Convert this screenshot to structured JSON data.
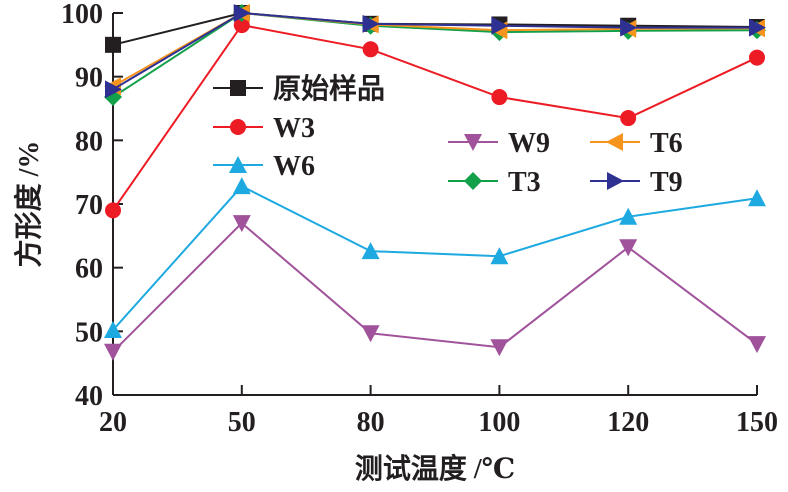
{
  "chart_data": {
    "type": "line",
    "xlabel": "测试温度 /℃",
    "ylabel": "方形度 /%",
    "categories": [
      "20",
      "50",
      "80",
      "100",
      "120",
      "150"
    ],
    "ylim": [
      40,
      100
    ],
    "yticks": [
      "40",
      "50",
      "60",
      "70",
      "80",
      "90",
      "100"
    ],
    "grid": false,
    "legend_placement": "inside-top",
    "series": [
      {
        "name": "原始样品",
        "color": "#231f20",
        "marker": "square",
        "values": [
          95,
          100,
          98.3,
          98.2,
          98,
          97.8
        ]
      },
      {
        "name": "W3",
        "color": "#ed1c24",
        "marker": "circle",
        "values": [
          69,
          98.1,
          94.3,
          86.8,
          83.5,
          93
        ]
      },
      {
        "name": "W6",
        "color": "#1eaae1",
        "marker": "triangle-up",
        "values": [
          50.2,
          72.8,
          62.6,
          61.8,
          68,
          70.9
        ]
      },
      {
        "name": "W9",
        "color": "#a0529a",
        "marker": "triangle-down",
        "values": [
          46.8,
          67,
          49.7,
          47.5,
          63.2,
          48
        ]
      },
      {
        "name": "T3",
        "color": "#13a04a",
        "marker": "diamond",
        "values": [
          86.8,
          100,
          98,
          97,
          97.2,
          97.3
        ]
      },
      {
        "name": "T6",
        "color": "#f7941d",
        "marker": "triangle-left",
        "values": [
          88.5,
          100,
          98.2,
          97.3,
          97.5,
          97.6
        ]
      },
      {
        "name": "T9",
        "color": "#2e3192",
        "marker": "triangle-right",
        "values": [
          88,
          100,
          98.3,
          98,
          97.7,
          97.7
        ]
      }
    ]
  }
}
